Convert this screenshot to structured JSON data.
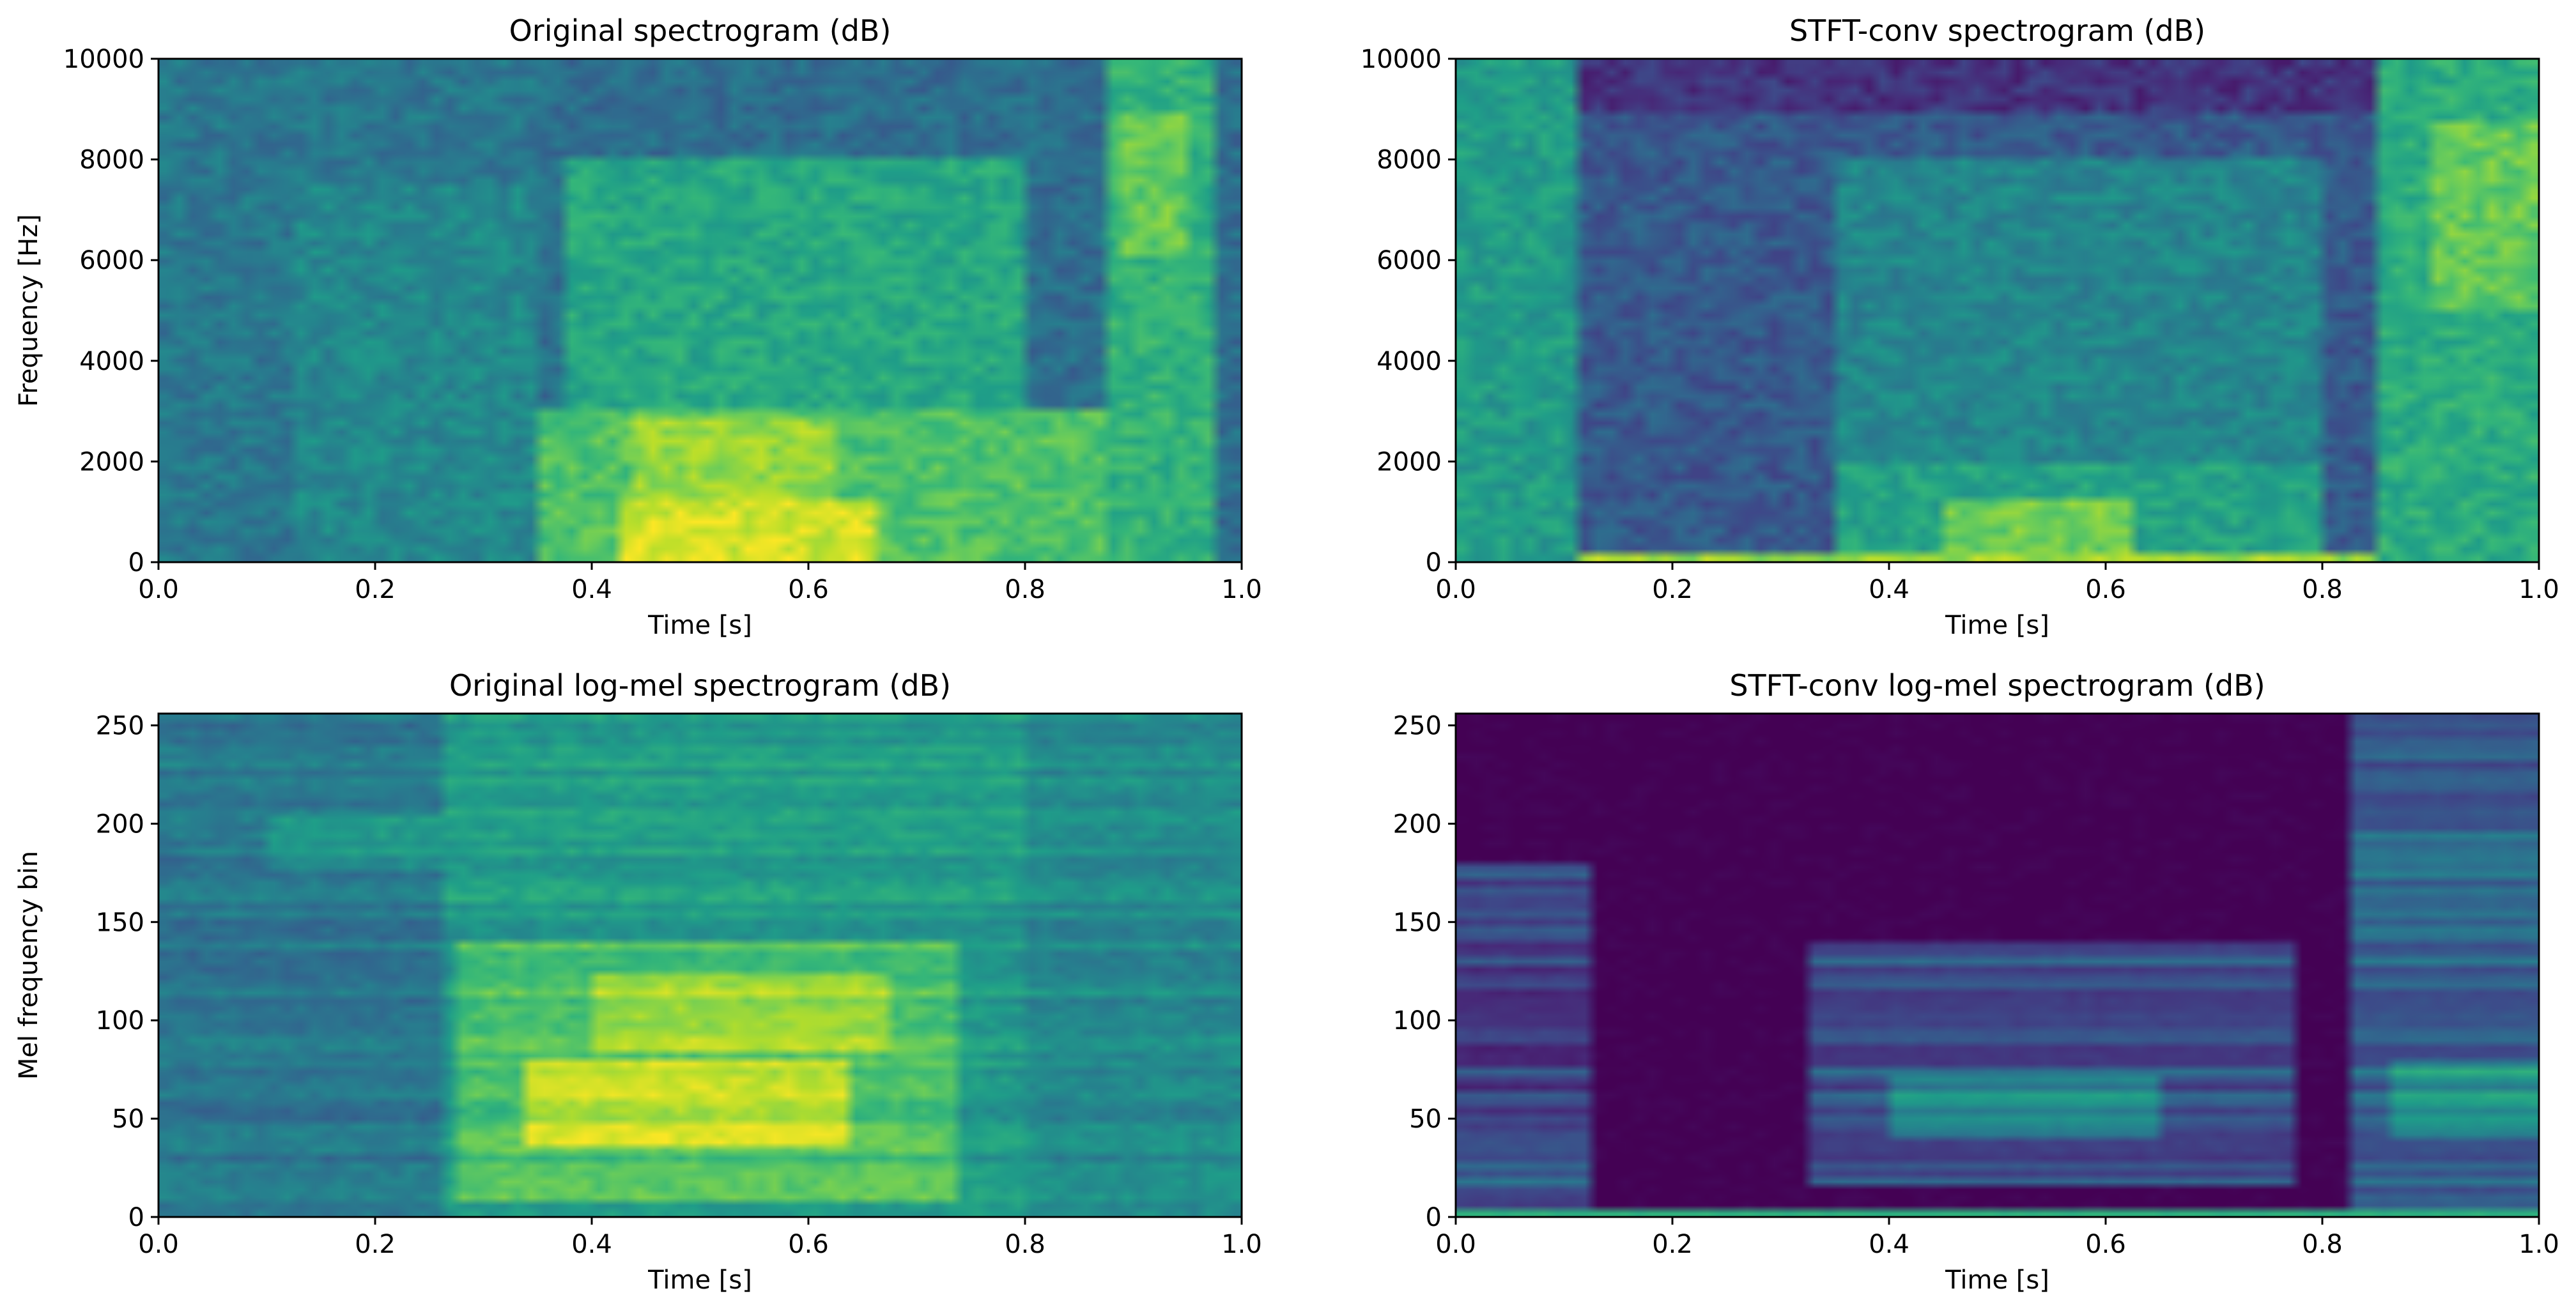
{
  "figure": {
    "colormap": "viridis",
    "colors": {
      "viridis": [
        "#440154",
        "#482878",
        "#3e4989",
        "#31688e",
        "#26828e",
        "#1f9e89",
        "#35b779",
        "#6ece58",
        "#b5de2b",
        "#fde725"
      ],
      "axis": "#000000",
      "background": "#ffffff"
    }
  },
  "chart_data": [
    {
      "id": "original-spectrogram",
      "type": "heatmap",
      "title": "Original spectrogram (dB)",
      "xlabel": "Time [s]",
      "ylabel": "Frequency [Hz]",
      "xlim": [
        0.0,
        1.0
      ],
      "ylim": [
        0,
        10000
      ],
      "xticks": [
        0.0,
        0.2,
        0.4,
        0.6,
        0.8,
        1.0
      ],
      "xtick_labels": [
        "0.0",
        "0.2",
        "0.4",
        "0.6",
        "0.8",
        "1.0"
      ],
      "yticks": [
        0,
        2000,
        4000,
        6000,
        8000,
        10000
      ],
      "ytick_labels": [
        "0",
        "2000",
        "4000",
        "6000",
        "8000",
        "10000"
      ],
      "grid": false,
      "cols": 80,
      "rows": 56,
      "background_level": 0.36,
      "noise": 0.08,
      "streaks": 0,
      "regions": [
        {
          "t0": 0.0,
          "t1": 0.35,
          "f0": 0,
          "f1": 10000,
          "level": 0.4
        },
        {
          "t0": 0.12,
          "t1": 0.35,
          "f0": 0,
          "f1": 7500,
          "level": 0.47
        },
        {
          "t0": 0.35,
          "t1": 0.87,
          "f0": 0,
          "f1": 3000,
          "level": 0.72
        },
        {
          "t0": 0.38,
          "t1": 0.8,
          "f0": 3000,
          "f1": 8000,
          "level": 0.6
        },
        {
          "t0": 0.42,
          "t1": 0.66,
          "f0": 0,
          "f1": 1300,
          "level": 0.94
        },
        {
          "t0": 0.44,
          "t1": 0.62,
          "f0": 1300,
          "f1": 2800,
          "level": 0.84
        },
        {
          "t0": 0.87,
          "t1": 0.97,
          "f0": 0,
          "f1": 10000,
          "level": 0.64
        },
        {
          "t0": 0.89,
          "t1": 0.95,
          "f0": 6000,
          "f1": 9000,
          "level": 0.76
        }
      ]
    },
    {
      "id": "stft-conv-spectrogram",
      "type": "heatmap",
      "title": "STFT-conv spectrogram (dB)",
      "xlabel": "Time [s]",
      "ylabel": "",
      "xlim": [
        0.0,
        1.0
      ],
      "ylim": [
        0,
        10000
      ],
      "xticks": [
        0.0,
        0.2,
        0.4,
        0.6,
        0.8,
        1.0
      ],
      "xtick_labels": [
        "0.0",
        "0.2",
        "0.4",
        "0.6",
        "0.8",
        "1.0"
      ],
      "yticks": [
        0,
        2000,
        4000,
        6000,
        8000,
        10000
      ],
      "ytick_labels": [
        "0",
        "2000",
        "4000",
        "6000",
        "8000",
        "10000"
      ],
      "grid": false,
      "cols": 80,
      "rows": 56,
      "background_level": 0.28,
      "noise": 0.08,
      "streaks": 0,
      "regions": [
        {
          "t0": 0.0,
          "t1": 0.11,
          "f0": 0,
          "f1": 10000,
          "level": 0.55
        },
        {
          "t0": 0.11,
          "t1": 0.85,
          "f0": 9000,
          "f1": 10000,
          "level": 0.15
        },
        {
          "t0": 0.35,
          "t1": 0.8,
          "f0": 2000,
          "f1": 8000,
          "level": 0.46
        },
        {
          "t0": 0.35,
          "t1": 0.8,
          "f0": 0,
          "f1": 2000,
          "level": 0.58
        },
        {
          "t0": 0.45,
          "t1": 0.62,
          "f0": 0,
          "f1": 1200,
          "level": 0.78
        },
        {
          "t0": 0.11,
          "t1": 0.9,
          "f0": 0,
          "f1": 150,
          "level": 0.85
        },
        {
          "t0": 0.85,
          "t1": 1.0,
          "f0": 0,
          "f1": 10000,
          "level": 0.62
        },
        {
          "t0": 0.9,
          "t1": 1.0,
          "f0": 5000,
          "f1": 8800,
          "level": 0.76
        }
      ]
    },
    {
      "id": "original-log-mel",
      "type": "heatmap",
      "title": "Original log-mel spectrogram (dB)",
      "xlabel": "Time [s]",
      "ylabel": "Mel frequency bin",
      "xlim": [
        0.0,
        1.0
      ],
      "ylim": [
        0,
        256
      ],
      "xticks": [
        0.0,
        0.2,
        0.4,
        0.6,
        0.8,
        1.0
      ],
      "xtick_labels": [
        "0.0",
        "0.2",
        "0.4",
        "0.6",
        "0.8",
        "1.0"
      ],
      "yticks": [
        0,
        50,
        100,
        150,
        200,
        250
      ],
      "ytick_labels": [
        "0",
        "50",
        "100",
        "150",
        "200",
        "250"
      ],
      "grid": false,
      "cols": 80,
      "rows": 64,
      "background_level": 0.36,
      "noise": 0.05,
      "streaks": 0.06,
      "regions": [
        {
          "t0": 0.0,
          "t1": 0.26,
          "f0": 0,
          "f1": 256,
          "level": 0.4
        },
        {
          "t0": 0.1,
          "t1": 0.26,
          "f0": 175,
          "f1": 205,
          "level": 0.52
        },
        {
          "t0": 0.26,
          "t1": 0.8,
          "f0": 0,
          "f1": 256,
          "level": 0.55
        },
        {
          "t0": 0.28,
          "t1": 0.74,
          "f0": 10,
          "f1": 140,
          "level": 0.72
        },
        {
          "t0": 0.34,
          "t1": 0.64,
          "f0": 35,
          "f1": 80,
          "level": 0.92
        },
        {
          "t0": 0.4,
          "t1": 0.68,
          "f0": 85,
          "f1": 125,
          "level": 0.86
        },
        {
          "t0": 0.8,
          "t1": 1.0,
          "f0": 0,
          "f1": 256,
          "level": 0.48
        }
      ]
    },
    {
      "id": "stft-conv-log-mel",
      "type": "heatmap",
      "title": "STFT-conv log-mel spectrogram (dB)",
      "xlabel": "Time [s]",
      "ylabel": "",
      "xlim": [
        0.0,
        1.0
      ],
      "ylim": [
        0,
        256
      ],
      "xticks": [
        0.0,
        0.2,
        0.4,
        0.6,
        0.8,
        1.0
      ],
      "xtick_labels": [
        "0.0",
        "0.2",
        "0.4",
        "0.6",
        "0.8",
        "1.0"
      ],
      "yticks": [
        0,
        50,
        100,
        150,
        200,
        250
      ],
      "ytick_labels": [
        "0",
        "50",
        "100",
        "150",
        "200",
        "250"
      ],
      "grid": false,
      "cols": 80,
      "rows": 64,
      "background_level": 0.0,
      "noise": 0.02,
      "streaks": 0.12,
      "regions": [
        {
          "t0": 0.0,
          "t1": 0.12,
          "f0": 0,
          "f1": 180,
          "level": 0.2
        },
        {
          "t0": 0.0,
          "t1": 0.12,
          "f0": 14,
          "f1": 45,
          "level": 0.32
        },
        {
          "t0": 0.32,
          "t1": 0.78,
          "f0": 15,
          "f1": 140,
          "level": 0.26
        },
        {
          "t0": 0.4,
          "t1": 0.65,
          "f0": 40,
          "f1": 70,
          "level": 0.48
        },
        {
          "t0": 0.82,
          "t1": 1.0,
          "f0": 0,
          "f1": 256,
          "level": 0.32
        },
        {
          "t0": 0.86,
          "t1": 1.0,
          "f0": 40,
          "f1": 80,
          "level": 0.52
        },
        {
          "t0": 0.0,
          "t1": 1.0,
          "f0": 0,
          "f1": 4,
          "level": 0.75
        }
      ]
    }
  ]
}
